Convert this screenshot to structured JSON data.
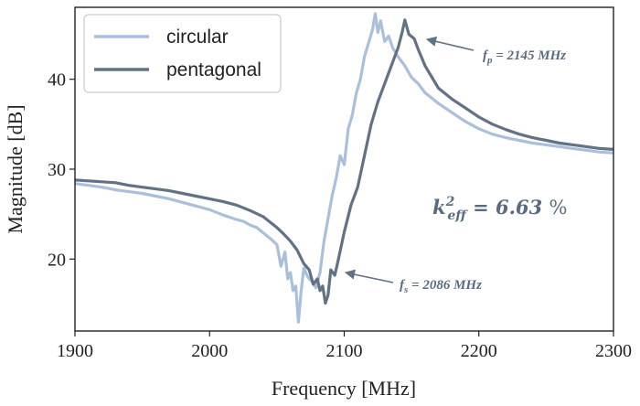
{
  "chart_data": {
    "type": "line",
    "title": "",
    "xlabel": "Frequency [MHz]",
    "ylabel": "Magnitude [dB]",
    "xlim": [
      1900,
      2300
    ],
    "ylim": [
      12,
      48
    ],
    "xticks": [
      1900,
      2000,
      2100,
      2200,
      2300
    ],
    "yticks": [
      20,
      30,
      40
    ],
    "grid": false,
    "legend": "top-left",
    "series": [
      {
        "name": "circular",
        "color": "#a9bfdc",
        "x": [
          1900,
          1910,
          1920,
          1930,
          1940,
          1950,
          1960,
          1970,
          1980,
          1990,
          2000,
          2010,
          2020,
          2025,
          2030,
          2035,
          2040,
          2045,
          2050,
          2053,
          2056,
          2058,
          2060,
          2062,
          2064,
          2066,
          2068,
          2070,
          2073,
          2076,
          2079,
          2082,
          2085,
          2088,
          2091,
          2094,
          2097,
          2100,
          2103,
          2106,
          2109,
          2112,
          2115,
          2118,
          2121,
          2123,
          2125,
          2127,
          2130,
          2133,
          2136,
          2140,
          2145,
          2150,
          2155,
          2160,
          2170,
          2180,
          2190,
          2200,
          2210,
          2220,
          2230,
          2240,
          2250,
          2260,
          2270,
          2280,
          2290,
          2300
        ],
        "y": [
          28.4,
          28.2,
          28.0,
          27.7,
          27.5,
          27.3,
          27.0,
          26.7,
          26.3,
          25.9,
          25.5,
          24.9,
          24.4,
          24.2,
          23.8,
          23.5,
          22.9,
          22.3,
          21.6,
          19.2,
          20.8,
          17.8,
          18.5,
          16.5,
          17.0,
          13.0,
          16.5,
          19.0,
          18.0,
          17.5,
          16.8,
          18.5,
          22.0,
          24.5,
          27.0,
          29.0,
          31.5,
          30.5,
          34.5,
          36.0,
          38.5,
          40.0,
          42.5,
          44.0,
          45.5,
          47.3,
          45.2,
          46.5,
          44.2,
          44.8,
          43.5,
          42.5,
          41.5,
          40.2,
          39.5,
          38.5,
          37.3,
          36.3,
          35.3,
          34.5,
          33.9,
          33.5,
          33.2,
          32.9,
          32.7,
          32.5,
          32.3,
          32.1,
          31.9,
          31.8
        ]
      },
      {
        "name": "pentagonal",
        "color": "#627184",
        "x": [
          1900,
          1910,
          1920,
          1930,
          1940,
          1950,
          1960,
          1970,
          1980,
          1990,
          2000,
          2010,
          2020,
          2030,
          2040,
          2050,
          2055,
          2060,
          2065,
          2070,
          2074,
          2077,
          2080,
          2082,
          2084,
          2086,
          2088,
          2090,
          2093,
          2096,
          2100,
          2105,
          2110,
          2115,
          2120,
          2125,
          2130,
          2135,
          2140,
          2143,
          2145,
          2148,
          2152,
          2155,
          2160,
          2170,
          2180,
          2190,
          2200,
          2210,
          2220,
          2230,
          2240,
          2250,
          2260,
          2270,
          2280,
          2290,
          2300
        ],
        "y": [
          28.8,
          28.7,
          28.6,
          28.5,
          28.2,
          28.0,
          27.8,
          27.6,
          27.3,
          27.0,
          26.7,
          26.4,
          26.0,
          25.4,
          24.7,
          23.5,
          22.8,
          22.0,
          21.0,
          19.5,
          18.8,
          17.2,
          17.8,
          16.5,
          17.0,
          15.1,
          16.0,
          18.8,
          18.2,
          20.2,
          23.0,
          26.0,
          28.0,
          31.5,
          35.0,
          37.5,
          39.5,
          41.5,
          43.5,
          45.2,
          46.6,
          45.0,
          44.5,
          43.3,
          41.5,
          39.0,
          37.8,
          36.8,
          35.8,
          35.0,
          34.4,
          33.9,
          33.5,
          33.2,
          32.9,
          32.7,
          32.5,
          32.3,
          32.2
        ]
      }
    ],
    "annotations": [
      {
        "text": "f_p = 2145 MHz",
        "x": 2145,
        "y": 46.6
      },
      {
        "text": "f_s = 2086 MHz",
        "x": 2086,
        "y": 15.1
      },
      {
        "text": "k²eff = 6.63 %"
      }
    ]
  }
}
